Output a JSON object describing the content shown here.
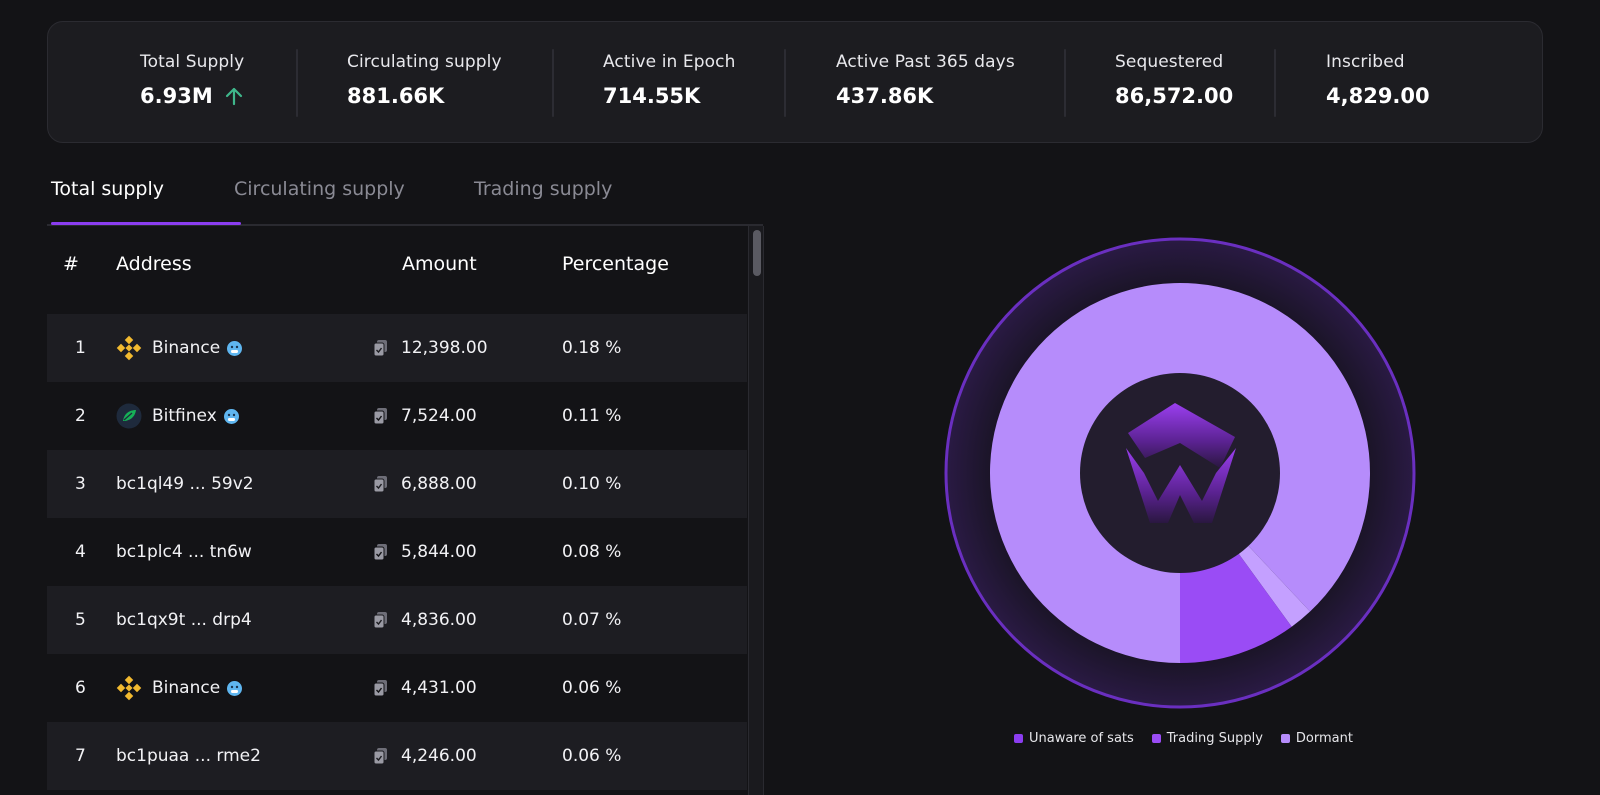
{
  "stats": [
    {
      "label": "Total Supply",
      "value": "6.93M",
      "trend": "up"
    },
    {
      "label": "Circulating supply",
      "value": "881.66K"
    },
    {
      "label": "Active in Epoch",
      "value": "714.55K"
    },
    {
      "label": "Active Past 365 days",
      "value": "437.86K"
    },
    {
      "label": "Sequestered",
      "value": "86,572.00"
    },
    {
      "label": "Inscribed",
      "value": "4,829.00"
    }
  ],
  "tabs": [
    {
      "label": "Total supply",
      "active": true
    },
    {
      "label": "Circulating supply",
      "active": false
    },
    {
      "label": "Trading supply",
      "active": false
    }
  ],
  "table": {
    "headers": {
      "rank": "#",
      "address": "Address",
      "amount": "Amount",
      "percentage": "Percentage"
    },
    "rows": [
      {
        "rank": "1",
        "address": "Binance",
        "logo": "binance-logo",
        "emoji": "cold-face-emoji",
        "amount": "12,398.00",
        "percentage": "0.18 %"
      },
      {
        "rank": "2",
        "address": "Bitfinex",
        "logo": "bitfinex-logo",
        "emoji": "cold-face-emoji",
        "amount": "7,524.00",
        "percentage": "0.11 %"
      },
      {
        "rank": "3",
        "address": "bc1ql49 ... 59v2",
        "amount": "6,888.00",
        "percentage": "0.10 %"
      },
      {
        "rank": "4",
        "address": "bc1plc4 ... tn6w",
        "amount": "5,844.00",
        "percentage": "0.08 %"
      },
      {
        "rank": "5",
        "address": "bc1qx9t ... drp4",
        "amount": "4,836.00",
        "percentage": "0.07 %"
      },
      {
        "rank": "6",
        "address": "Binance",
        "logo": "binance-logo",
        "emoji": "cold-face-emoji",
        "amount": "4,431.00",
        "percentage": "0.06 %"
      },
      {
        "rank": "7",
        "address": "bc1puaa ... rme2",
        "amount": "4,246.00",
        "percentage": "0.06 %"
      }
    ]
  },
  "colors": {
    "accent": "#8b3df0",
    "positive": "#3fb68b",
    "unaware": "#8b3df0",
    "trading": "#9a4cf5",
    "dormant": "#b68cfb"
  },
  "chart_data": {
    "type": "pie",
    "style": "donut",
    "series": [
      {
        "name": "Unaware of sats",
        "value": 2,
        "color": "#c4a0ff"
      },
      {
        "name": "Trading Supply",
        "value": 10,
        "color": "#9a4cf5"
      },
      {
        "name": "Dormant",
        "value": 88,
        "color": "#b68cfb"
      }
    ],
    "legend": [
      "Unaware of sats",
      "Trading Supply",
      "Dormant"
    ],
    "legend_position": "bottom",
    "legend_colors": [
      "#8b3df0",
      "#9a4cf5",
      "#b68cfb"
    ]
  }
}
